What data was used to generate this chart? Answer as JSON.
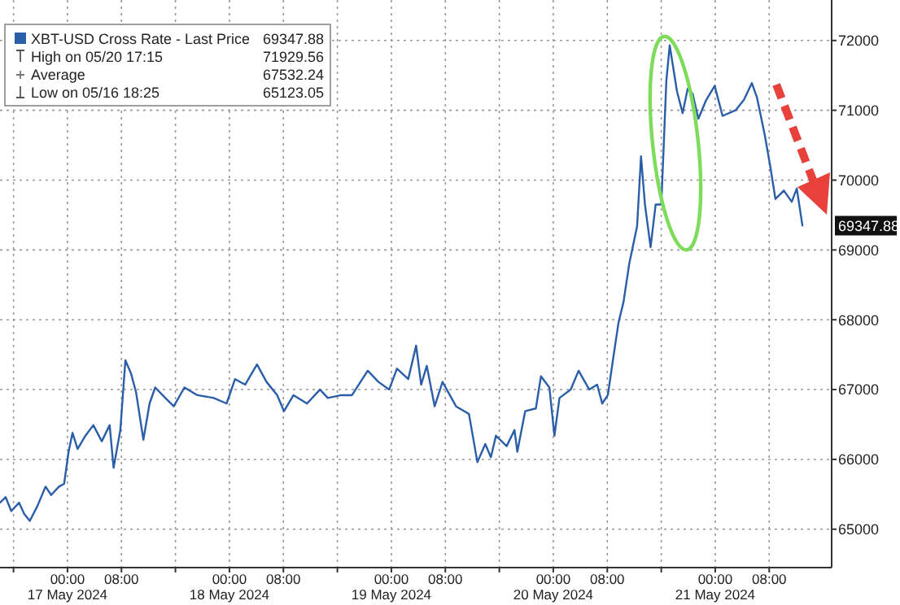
{
  "chart_data": {
    "type": "line",
    "legend": "top left",
    "grid": true,
    "marker": "none",
    "line_style": "solid",
    "xlim": [
      "2024-05-16T14:00",
      "2024-05-21T17:15"
    ],
    "ylim": [
      64450,
      72580
    ],
    "yticks": [
      65000,
      66000,
      67000,
      68000,
      69000,
      70000,
      71000,
      72000
    ],
    "xticks": [
      {
        "value": "2024-05-16T16:00",
        "label": null
      },
      {
        "value": "2024-05-17T00:00",
        "label": "00:00\n17 May 2024"
      },
      {
        "value": "2024-05-17T08:00",
        "label": "08:00"
      },
      {
        "value": "2024-05-17T16:00",
        "label": null
      },
      {
        "value": "2024-05-18T00:00",
        "label": "00:00\n18 May 2024"
      },
      {
        "value": "2024-05-18T08:00",
        "label": "08:00"
      },
      {
        "value": "2024-05-18T16:00",
        "label": null
      },
      {
        "value": "2024-05-19T00:00",
        "label": "00:00\n19 May 2024"
      },
      {
        "value": "2024-05-19T08:00",
        "label": "08:00"
      },
      {
        "value": "2024-05-19T16:00",
        "label": null
      },
      {
        "value": "2024-05-20T00:00",
        "label": "00:00\n20 May 2024"
      },
      {
        "value": "2024-05-20T08:00",
        "label": "08:00"
      },
      {
        "value": "2024-05-20T16:00",
        "label": null
      },
      {
        "value": "2024-05-21T00:00",
        "label": "00:00\n21 May 2024"
      },
      {
        "value": "2024-05-21T08:00",
        "label": "08:00"
      }
    ],
    "x": [
      "2024-05-16T14:00",
      "2024-05-16T14:50",
      "2024-05-16T15:40",
      "2024-05-16T16:50",
      "2024-05-16T17:35",
      "2024-05-16T18:25",
      "2024-05-16T19:35",
      "2024-05-16T20:45",
      "2024-05-16T21:35",
      "2024-05-16T22:45",
      "2024-05-16T23:30",
      "2024-05-17T00:10",
      "2024-05-17T00:45",
      "2024-05-17T01:30",
      "2024-05-17T02:40",
      "2024-05-17T03:50",
      "2024-05-17T05:05",
      "2024-05-17T06:15",
      "2024-05-17T06:50",
      "2024-05-17T07:50",
      "2024-05-17T08:35",
      "2024-05-17T09:25",
      "2024-05-17T10:10",
      "2024-05-17T11:15",
      "2024-05-17T12:10",
      "2024-05-17T13:00",
      "2024-05-17T14:30",
      "2024-05-17T15:45",
      "2024-05-17T17:20",
      "2024-05-17T19:15",
      "2024-05-17T21:40",
      "2024-05-17T23:35",
      "2024-05-18T00:50",
      "2024-05-18T02:20",
      "2024-05-18T04:05",
      "2024-05-18T05:30",
      "2024-05-18T07:05",
      "2024-05-18T08:05",
      "2024-05-18T09:30",
      "2024-05-18T11:30",
      "2024-05-18T13:25",
      "2024-05-18T14:35",
      "2024-05-18T16:35",
      "2024-05-18T18:10",
      "2024-05-18T20:30",
      "2024-05-18T22:05",
      "2024-05-18T23:40",
      "2024-05-19T00:50",
      "2024-05-19T02:30",
      "2024-05-19T03:40",
      "2024-05-19T04:25",
      "2024-05-19T05:15",
      "2024-05-19T06:25",
      "2024-05-19T07:35",
      "2024-05-19T09:35",
      "2024-05-19T11:30",
      "2024-05-19T12:45",
      "2024-05-19T13:55",
      "2024-05-19T14:45",
      "2024-05-19T15:30",
      "2024-05-19T17:05",
      "2024-05-19T18:15",
      "2024-05-19T18:40",
      "2024-05-19T19:50",
      "2024-05-19T21:25",
      "2024-05-19T22:10",
      "2024-05-19T23:25",
      "2024-05-20T00:10",
      "2024-05-20T00:55",
      "2024-05-20T02:35",
      "2024-05-20T03:45",
      "2024-05-20T05:20",
      "2024-05-20T06:30",
      "2024-05-20T07:15",
      "2024-05-20T08:05",
      "2024-05-20T08:50",
      "2024-05-20T09:40",
      "2024-05-20T10:25",
      "2024-05-20T11:15",
      "2024-05-20T12:25",
      "2024-05-20T13:00",
      "2024-05-20T13:35",
      "2024-05-20T14:25",
      "2024-05-20T15:10",
      "2024-05-20T16:00",
      "2024-05-20T16:20",
      "2024-05-20T16:45",
      "2024-05-20T17:15",
      "2024-05-20T18:20",
      "2024-05-20T19:10",
      "2024-05-20T19:55",
      "2024-05-20T20:40",
      "2024-05-20T21:30",
      "2024-05-20T22:40",
      "2024-05-20T23:55",
      "2024-05-21T01:05",
      "2024-05-21T03:00",
      "2024-05-21T04:15",
      "2024-05-21T05:25",
      "2024-05-21T06:10",
      "2024-05-21T07:20",
      "2024-05-21T08:10",
      "2024-05-21T08:55",
      "2024-05-21T10:10",
      "2024-05-21T11:20",
      "2024-05-21T12:05",
      "2024-05-21T12:55"
    ],
    "series": [
      {
        "name": "XBT-USD Cross Rate - Last Price",
        "color": "#2b5ea8",
        "values": [
          65380,
          65460,
          65260,
          65380,
          65220,
          65120,
          65340,
          65610,
          65490,
          65610,
          65650,
          66110,
          66380,
          66150,
          66340,
          66490,
          66260,
          66490,
          65880,
          66420,
          67420,
          67230,
          66960,
          66280,
          66800,
          67030,
          66880,
          66760,
          67030,
          66920,
          66880,
          66800,
          67150,
          67070,
          67360,
          67110,
          66920,
          66690,
          66920,
          66800,
          67000,
          66880,
          66920,
          66920,
          67270,
          67110,
          67000,
          67300,
          67150,
          67630,
          67070,
          67340,
          66760,
          67110,
          66760,
          66650,
          65960,
          66220,
          66030,
          66340,
          66190,
          66420,
          66110,
          66690,
          66730,
          67190,
          67030,
          66340,
          66880,
          67000,
          67270,
          67000,
          67070,
          66800,
          66920,
          67420,
          67960,
          68260,
          68800,
          69340,
          70340,
          69650,
          69040,
          69650,
          69650,
          70420,
          71420,
          71930,
          71270,
          70960,
          71310,
          71230,
          70880,
          71150,
          71350,
          70920,
          71000,
          71150,
          71390,
          71190,
          70650,
          70190,
          69730,
          69850,
          69690,
          69880,
          69350
        ]
      }
    ],
    "annotations": [
      "69347.88",
      "High on 05/20 17:15",
      "71929.56",
      "Average",
      "67532.24",
      "Low on 05/16 18:25",
      "65123.05",
      {
        "text": "69347.88",
        "y": 69347.88
      }
    ]
  }
}
